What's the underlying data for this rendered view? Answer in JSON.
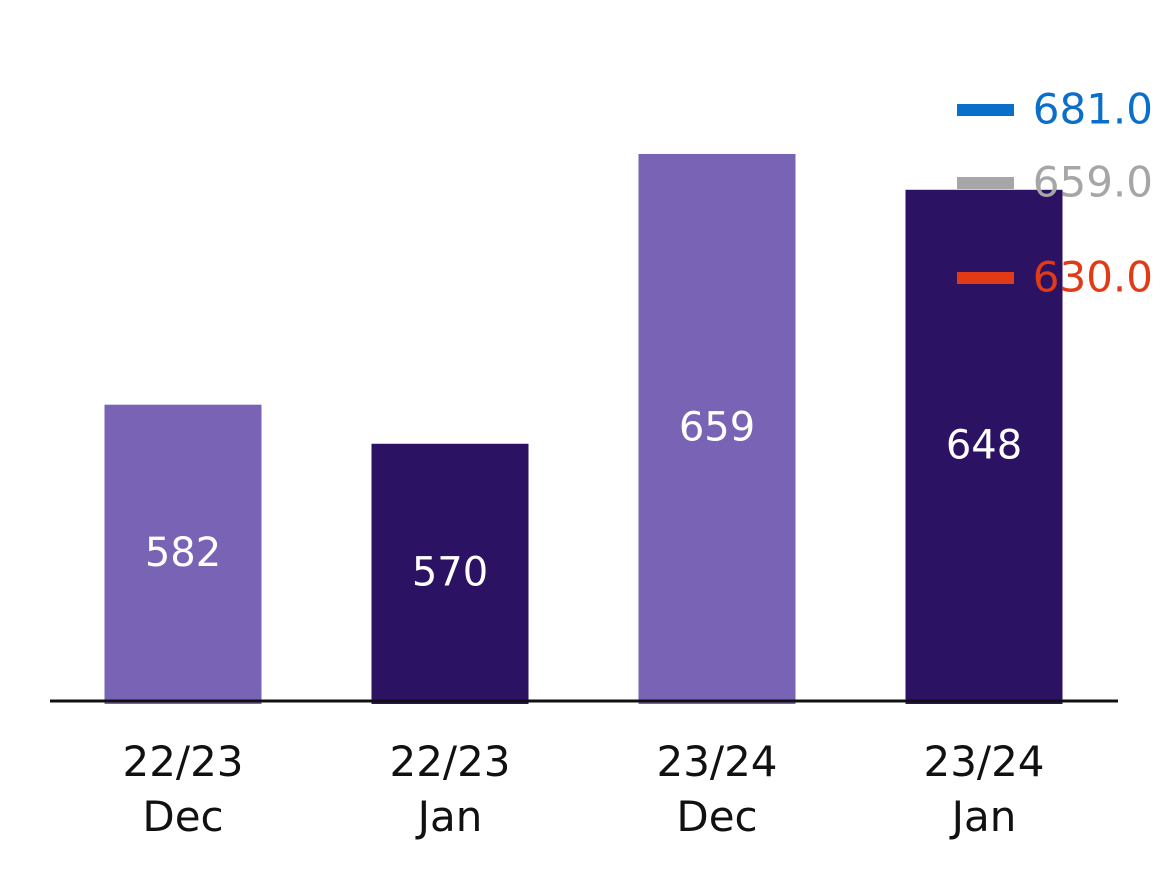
{
  "chart_data": {
    "type": "bar",
    "categories": [
      [
        "22/23",
        "Dec"
      ],
      [
        "22/23",
        "Jan"
      ],
      [
        "23/24",
        "Dec"
      ],
      [
        "23/24",
        "Jan"
      ]
    ],
    "values": [
      582,
      570,
      659,
      648
    ],
    "value_labels": [
      "582",
      "570",
      "659",
      "648"
    ],
    "bar_colors": [
      "#7963b4",
      "#2b1263",
      "#7963b4",
      "#2b1263"
    ],
    "ylim": [
      491,
      694
    ],
    "grid": false,
    "reference_lines": [
      {
        "value": 681.0,
        "label": "681.0",
        "color": "#0a6fc8"
      },
      {
        "value": 659.0,
        "label": "659.0",
        "color": "#a6a6a6"
      },
      {
        "value": 630.0,
        "label": "630.0",
        "color": "#e03a16"
      }
    ],
    "legend_placement": "top-right"
  }
}
